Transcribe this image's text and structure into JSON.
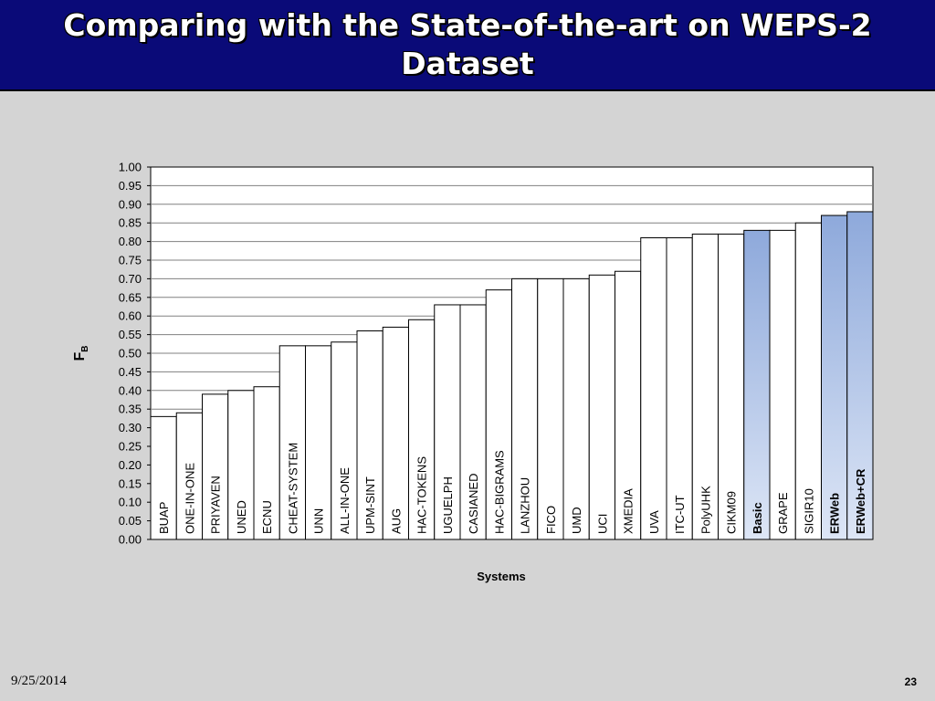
{
  "slide": {
    "title": "Comparing with the State-of-the-art on WEPS-2 Dataset",
    "date": "9/25/2014",
    "page_number": "23"
  },
  "chart_data": {
    "type": "bar",
    "title": "",
    "xlabel": "Systems",
    "ylabel": "F",
    "ylabel_subscript": "B",
    "ylim": [
      0,
      1.0
    ],
    "ytick_step": 0.05,
    "grid": true,
    "legend": "none",
    "categories": [
      "BUAP",
      "ONE-IN-ONE",
      "PRIYAVEN",
      "UNED",
      "ECNU",
      "CHEAT-SYSTEM",
      "UNN",
      "ALL-IN-ONE",
      "UPM-SINT",
      "AUG",
      "HAC-TOKENS",
      "UGUELPH",
      "CASIANED",
      "HAC-BIGRAMS",
      "LANZHOU",
      "FICO",
      "UMD",
      "UCI",
      "XMEDIA",
      "UVA",
      "ITC-UT",
      "PolyUHK",
      "CIKM09",
      "Basic",
      "GRAPE",
      "SIGIR10",
      "ERWeb",
      "ERWeb+CR"
    ],
    "values": [
      0.33,
      0.34,
      0.39,
      0.4,
      0.41,
      0.52,
      0.52,
      0.53,
      0.56,
      0.57,
      0.59,
      0.63,
      0.63,
      0.67,
      0.7,
      0.7,
      0.7,
      0.71,
      0.72,
      0.81,
      0.81,
      0.82,
      0.82,
      0.83,
      0.83,
      0.85,
      0.87,
      0.88
    ],
    "highlighted": [
      "Basic",
      "ERWeb",
      "ERWeb+CR"
    ],
    "colors": {
      "bar_fill": "#ffffff",
      "highlight_top": "#8ea9db",
      "highlight_bottom": "#dde6f6",
      "bar_stroke": "#000000",
      "grid": "#808080"
    }
  }
}
